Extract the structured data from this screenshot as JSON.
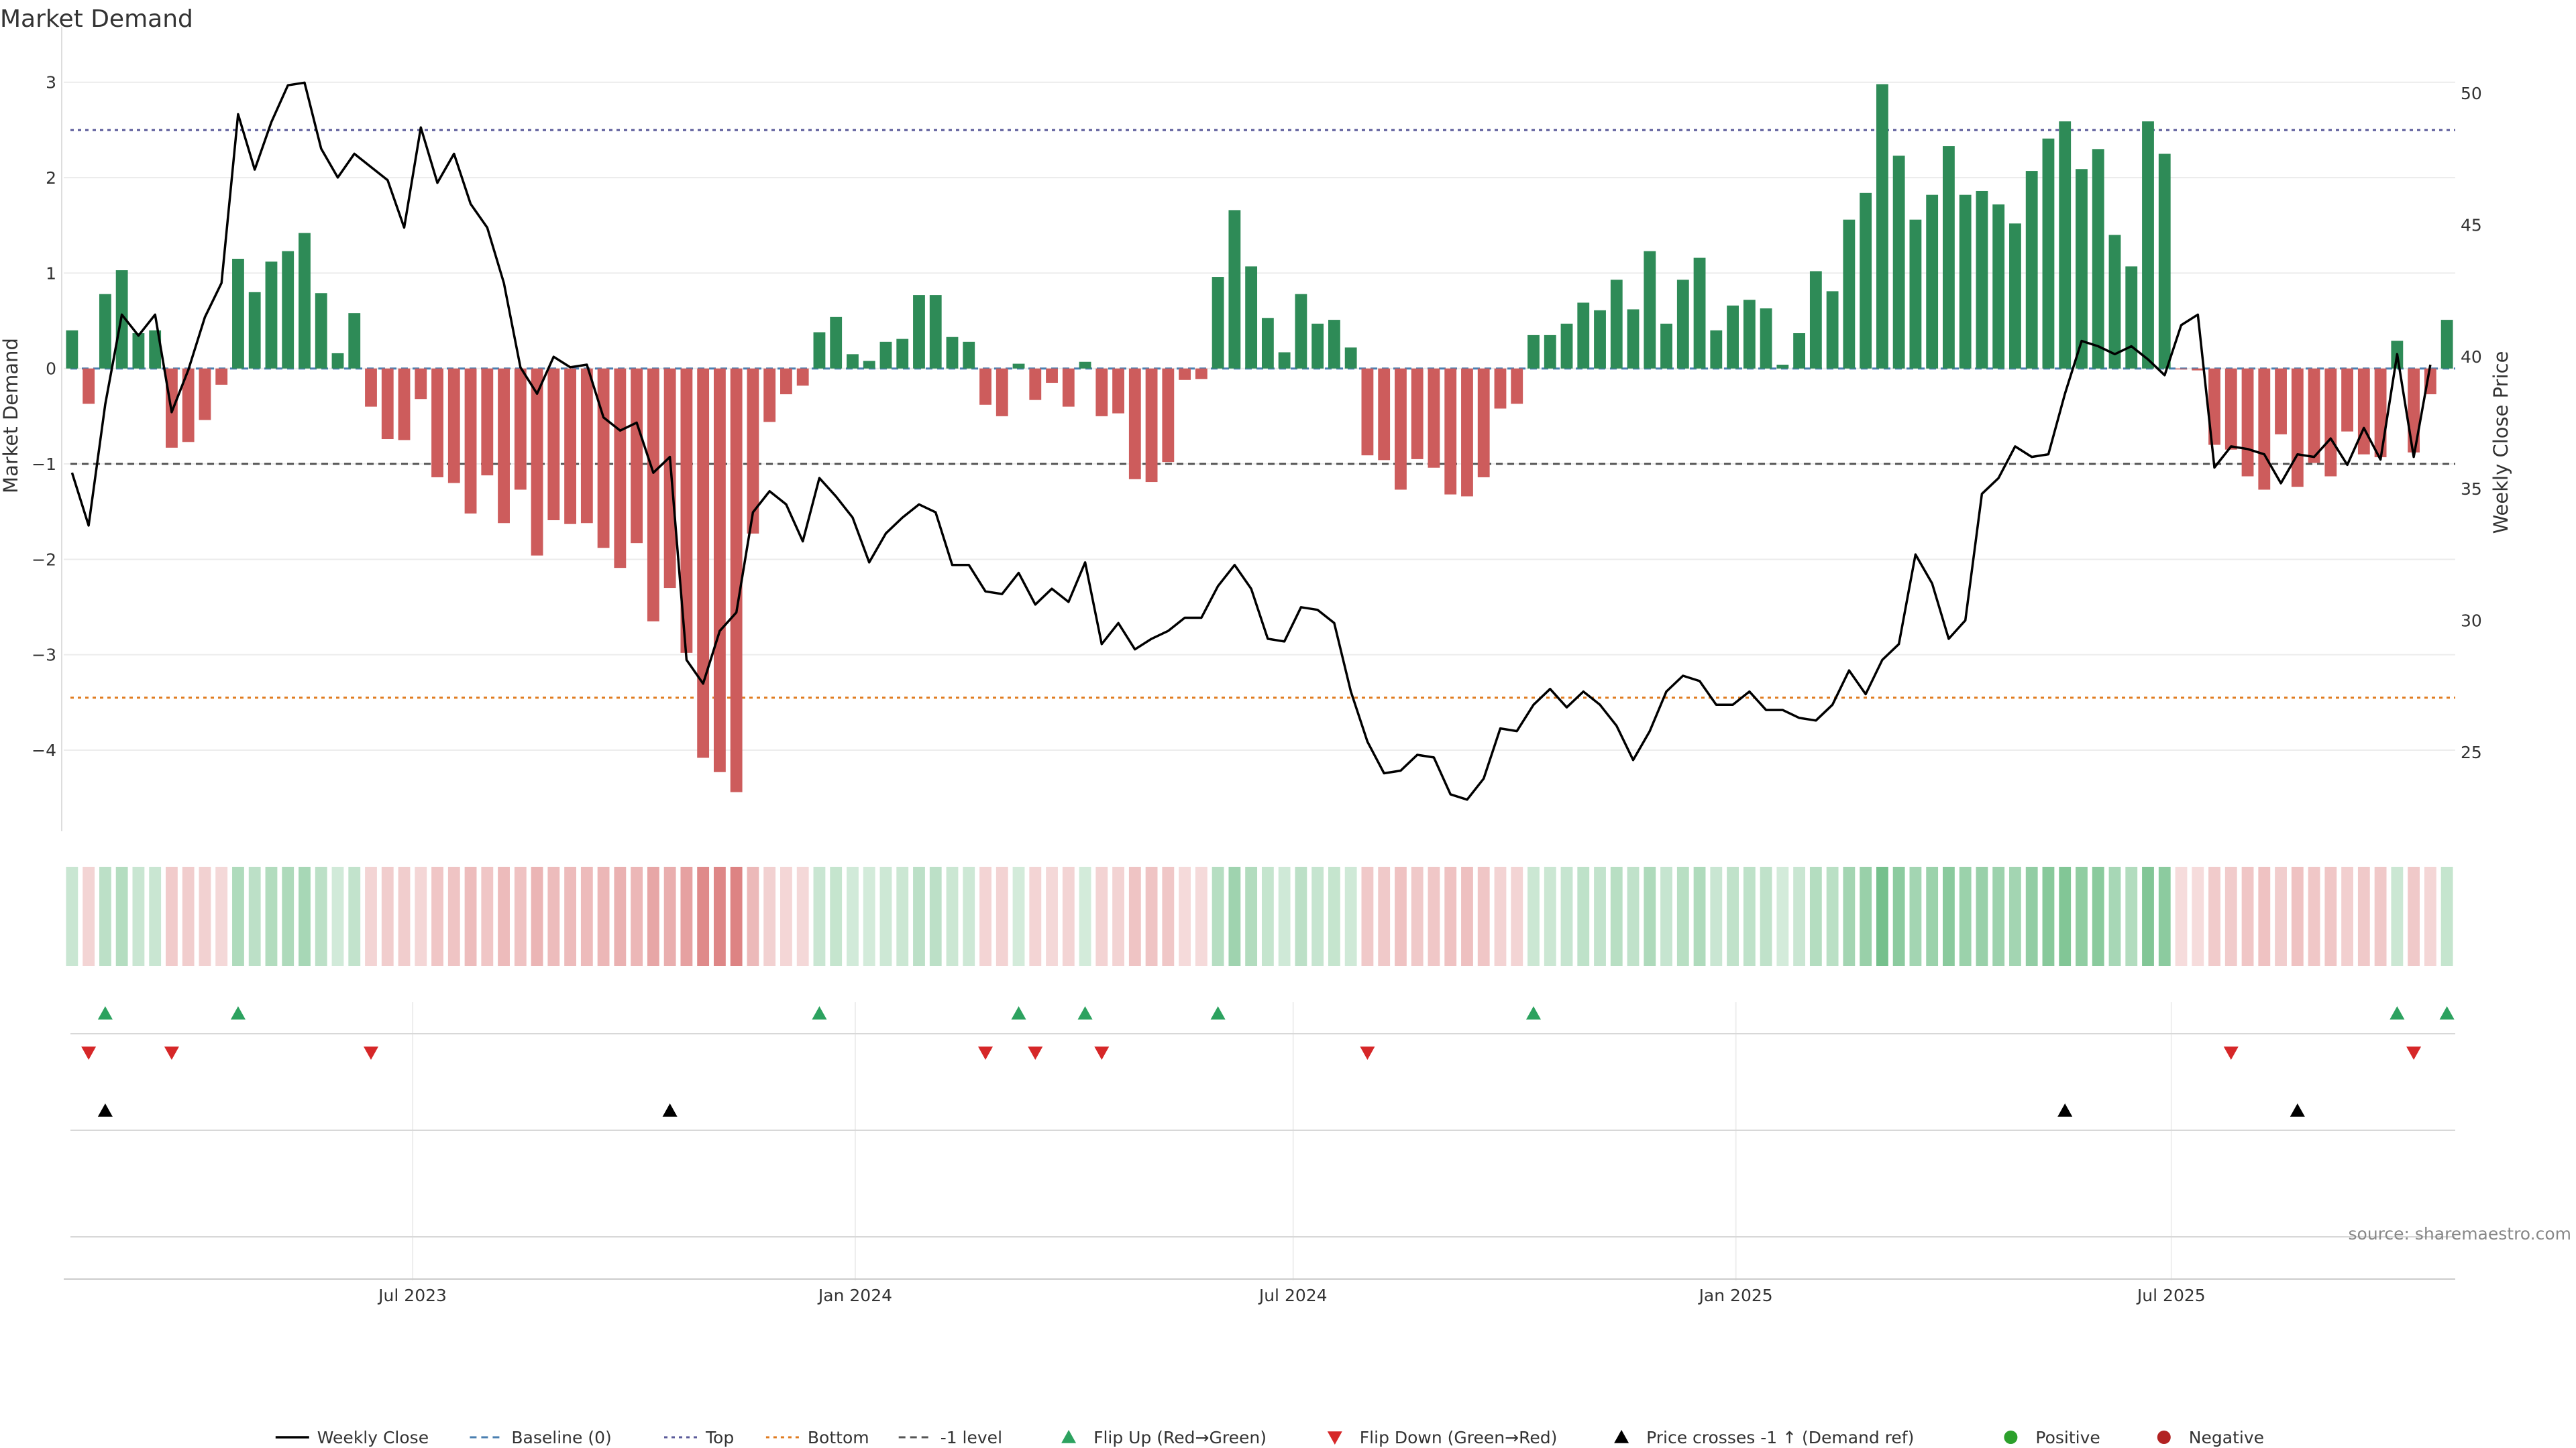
{
  "chart_data": {
    "type": "bar",
    "title": "Market Demand",
    "ylabel_left": "Market Demand",
    "ylabel_right": "Weekly Close Price",
    "source": "source: sharemaestro.com",
    "ylim_left": [
      -4.85,
      3.3
    ],
    "ylim_right": [
      22,
      51.5
    ],
    "yticks_left": [
      3,
      2,
      1,
      0,
      -1,
      -2,
      -3,
      -4
    ],
    "yticks_left_labels": [
      "3",
      "2",
      "1",
      "0",
      "−1",
      "−2",
      "−3",
      "−4"
    ],
    "yticks_right": [
      50,
      45,
      40,
      35,
      30,
      25
    ],
    "x_start": "2023-02-06",
    "x_end": "2025-10-27",
    "x_ticks": [
      {
        "date": "2023-07-01",
        "label": "Jul 2023"
      },
      {
        "date": "2024-01-01",
        "label": "Jan 2024"
      },
      {
        "date": "2024-07-01",
        "label": "Jul 2024"
      },
      {
        "date": "2025-01-01",
        "label": "Jan 2025"
      },
      {
        "date": "2025-07-01",
        "label": "Jul 2025"
      }
    ],
    "reference_lines": [
      {
        "name": "Top",
        "value": 2.5,
        "color": "#5b5b9a",
        "dash": "dotted"
      },
      {
        "name": "-1 level",
        "value": -1,
        "color": "#555555",
        "dash": "dashed"
      },
      {
        "name": "Bottom",
        "value": -3.45,
        "color": "#e07b1f",
        "dash": "dotted"
      },
      {
        "name": "Baseline (0)",
        "value": 0,
        "color": "#4a7fb0",
        "dash": "dashed"
      }
    ],
    "series": [
      {
        "name": "Market Demand",
        "type": "bar",
        "values": [
          0.4,
          -0.37,
          0.78,
          1.03,
          0.37,
          0.4,
          -0.83,
          -0.77,
          -0.54,
          -0.17,
          1.15,
          0.8,
          1.12,
          1.23,
          1.42,
          0.79,
          0.16,
          0.58,
          -0.4,
          -0.74,
          -0.75,
          -0.32,
          -1.14,
          -1.2,
          -1.52,
          -1.12,
          -1.62,
          -1.27,
          -1.96,
          -1.59,
          -1.63,
          -1.62,
          -1.88,
          -2.09,
          -1.83,
          -2.65,
          -2.3,
          -2.98,
          -4.08,
          -4.23,
          -4.44,
          -1.73,
          -0.56,
          -0.27,
          -0.18,
          0.38,
          0.54,
          0.15,
          0.08,
          0.28,
          0.31,
          0.77,
          0.77,
          0.33,
          0.28,
          -0.38,
          -0.5,
          0.05,
          -0.33,
          -0.15,
          -0.4,
          0.07,
          -0.5,
          -0.47,
          -1.16,
          -1.19,
          -0.98,
          -0.12,
          -0.11,
          0.96,
          1.66,
          1.07,
          0.53,
          0.17,
          0.78,
          0.47,
          0.51,
          0.22,
          -0.91,
          -0.96,
          -1.27,
          -0.95,
          -1.04,
          -1.32,
          -1.34,
          -1.14,
          -0.42,
          -0.37,
          0.35,
          0.35,
          0.47,
          0.69,
          0.61,
          0.93,
          0.62,
          1.23,
          0.47,
          0.93,
          1.16,
          0.4,
          0.66,
          0.72,
          0.63,
          0.04,
          0.37,
          1.02,
          0.81,
          1.56,
          1.84,
          2.98,
          2.23,
          1.56,
          1.82,
          2.33,
          1.82,
          1.86,
          1.72,
          1.52,
          2.07,
          2.41,
          2.59,
          2.09,
          2.3,
          1.4,
          1.07,
          2.59,
          2.25,
          -0.01,
          -0.02,
          -0.8,
          -0.85,
          -1.13,
          -1.27,
          -0.69,
          -1.24,
          -0.99,
          -1.13,
          -0.66,
          -0.9,
          -0.93,
          0.29,
          -0.88,
          -0.27,
          0.51
        ],
        "color_pos": "#2e8b57",
        "color_neg": "#cd5c5c"
      },
      {
        "name": "Weekly Close",
        "type": "line",
        "axis": "right",
        "color": "#000000",
        "values": [
          35.6,
          33.6,
          38.2,
          41.6,
          40.8,
          41.6,
          37.9,
          39.5,
          41.5,
          42.8,
          49.2,
          47.1,
          48.9,
          50.3,
          50.4,
          47.9,
          46.8,
          47.7,
          47.2,
          46.7,
          44.9,
          48.7,
          46.6,
          47.7,
          45.8,
          44.9,
          42.8,
          39.6,
          38.6,
          40.0,
          39.6,
          39.7,
          37.7,
          37.2,
          37.5,
          35.6,
          36.2,
          28.5,
          27.6,
          29.6,
          30.3,
          34.1,
          34.9,
          34.4,
          33.0,
          35.4,
          34.7,
          33.9,
          32.2,
          33.3,
          33.9,
          34.4,
          34.1,
          32.1,
          32.1,
          31.1,
          31.0,
          31.8,
          30.6,
          31.2,
          30.7,
          32.2,
          29.1,
          29.9,
          28.9,
          29.3,
          29.6,
          30.1,
          30.1,
          31.3,
          32.1,
          31.2,
          29.3,
          29.2,
          30.5,
          30.4,
          29.9,
          27.3,
          25.4,
          24.2,
          24.3,
          24.9,
          24.8,
          23.4,
          23.2,
          24.0,
          25.9,
          25.8,
          26.8,
          27.4,
          26.7,
          27.3,
          26.8,
          26.0,
          24.7,
          25.8,
          27.3,
          27.9,
          27.7,
          26.8,
          26.8,
          27.3,
          26.6,
          26.6,
          26.3,
          26.2,
          26.8,
          28.1,
          27.2,
          28.5,
          29.1,
          32.5,
          31.4,
          29.3,
          30.0,
          34.8,
          35.4,
          36.6,
          36.2,
          36.3,
          38.6,
          40.6,
          40.4,
          40.1,
          40.4,
          39.9,
          39.3,
          41.2,
          41.6,
          35.8,
          36.6,
          36.5,
          36.3,
          35.2,
          36.3,
          36.2,
          36.9,
          35.9,
          37.3,
          36.1,
          40.1,
          36.2,
          39.7
        ]
      }
    ],
    "heat_strip": {
      "description_label": ""
    },
    "signals": {
      "flip_up_weeks": [
        2,
        10,
        45,
        57,
        61,
        69,
        88,
        140,
        143
      ],
      "flip_down_weeks": [
        1,
        6,
        18,
        55,
        58,
        62,
        78,
        130,
        141
      ],
      "price_cross_weeks": [
        2,
        36,
        120,
        134
      ]
    },
    "legend": {
      "placement": "bottom-center",
      "items": [
        {
          "label": "Weekly Close",
          "kind": "line",
          "color": "#000000"
        },
        {
          "label": "Baseline (0)",
          "kind": "dash",
          "color": "#4a7fb0"
        },
        {
          "label": "Top",
          "kind": "dot",
          "color": "#5b5b9a"
        },
        {
          "label": "Bottom",
          "kind": "dot",
          "color": "#e07b1f"
        },
        {
          "label": "-1 level",
          "kind": "dash",
          "color": "#555555"
        },
        {
          "label": "Flip Up (Red→Green)",
          "kind": "tri-up",
          "color": "#2ca25f"
        },
        {
          "label": "Flip Down (Green→Red)",
          "kind": "tri-down",
          "color": "#d62728"
        },
        {
          "label": "Price crosses -1 ↑ (Demand ref)",
          "kind": "tri-up",
          "color": "#000000"
        },
        {
          "label": "Positive",
          "kind": "circle",
          "color": "#2ca02c"
        },
        {
          "label": "Negative",
          "kind": "circle",
          "color": "#b22222"
        }
      ]
    }
  }
}
